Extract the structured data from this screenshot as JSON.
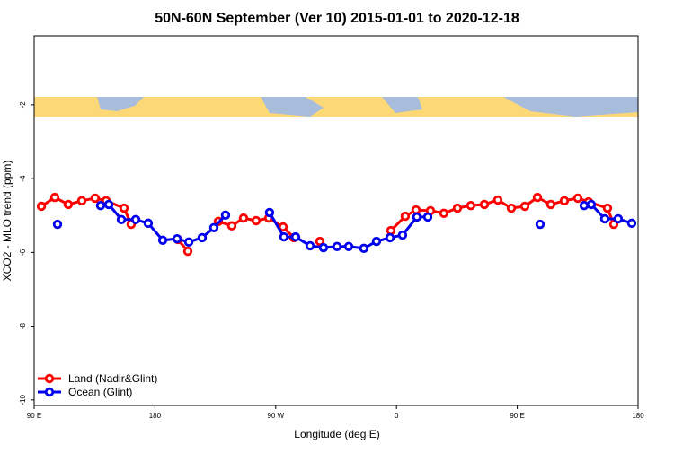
{
  "chart_data": {
    "type": "line",
    "title": "50N-60N September (Ver 10)   2015-01-01 to 2020-12-18",
    "x_label": "Longitude (deg E)",
    "y_label": "XCO2 - MLO trend (ppm)",
    "xlim": [
      90,
      540
    ],
    "ylim": [
      -10.15,
      -0.13
    ],
    "xticks": [
      {
        "value": 90,
        "label": "90 E"
      },
      180,
      {
        "value": 270,
        "label": "90 W"
      },
      {
        "value": 360,
        "label": "0"
      },
      {
        "value": 450,
        "label": "90 E"
      },
      {
        "value": 540,
        "label": "180"
      }
    ],
    "yticks": [
      -2,
      -4,
      -6,
      -8,
      -10
    ],
    "legend": "bottom-left",
    "series": [
      {
        "name": "Land (Nadir&Glint)",
        "color": "#ff0000",
        "x": [
          95.4,
          105.4,
          115.4,
          125.5,
          135.5,
          143.6,
          157.0,
          162.3,
          null,
          197.1,
          204.5,
          null,
          227.3,
          237.3,
          246.0,
          255.4,
          264.8,
          275.5,
          283.5,
          null,
          302.9,
          null,
          355.8,
          366.5,
          374.6,
          385.3,
          395.3,
          405.4,
          415.4,
          425.5,
          435.5,
          445.6,
          455.6,
          465.0,
          475.0,
          485.1,
          495.1,
          503.1,
          517.2,
          521.9
        ],
        "values": [
          -4.75,
          -4.51,
          -4.7,
          -4.6,
          -4.53,
          -4.6,
          -4.8,
          -5.24,
          null,
          -5.65,
          -5.97,
          null,
          -5.16,
          -5.28,
          -5.07,
          -5.14,
          -5.07,
          -5.31,
          -5.6,
          null,
          -5.7,
          null,
          -5.41,
          -5.02,
          -4.85,
          -4.87,
          -4.94,
          -4.8,
          -4.73,
          -4.7,
          -4.58,
          -4.8,
          -4.75,
          -4.51,
          -4.7,
          -4.6,
          -4.53,
          -4.63,
          -4.8,
          -5.24
        ]
      },
      {
        "name": "Ocean (Glint)",
        "color": "#0000ee",
        "x": [
          107.4,
          null,
          139.5,
          145.6,
          155.0,
          165.7,
          175.0,
          185.8,
          196.5,
          205.2,
          215.2,
          223.9,
          232.6,
          null,
          265.4,
          276.1,
          284.8,
          295.6,
          305.6,
          315.7,
          324.4,
          335.7,
          345.1,
          355.2,
          364.5,
          375.2,
          383.3,
          null,
          467.0,
          null,
          499.8,
          505.1,
          515.2,
          525.2,
          535.3
        ],
        "values": [
          -5.24,
          null,
          -4.73,
          -4.7,
          -5.11,
          -5.11,
          -5.21,
          -5.67,
          -5.63,
          -5.72,
          -5.6,
          -5.33,
          -4.99,
          null,
          -4.92,
          -5.58,
          -5.58,
          -5.82,
          -5.87,
          -5.84,
          -5.84,
          -5.89,
          -5.7,
          -5.6,
          -5.53,
          -5.04,
          -5.04,
          null,
          -5.24,
          null,
          -4.73,
          -4.7,
          -5.09,
          -5.09,
          -5.21
        ]
      }
    ]
  }
}
